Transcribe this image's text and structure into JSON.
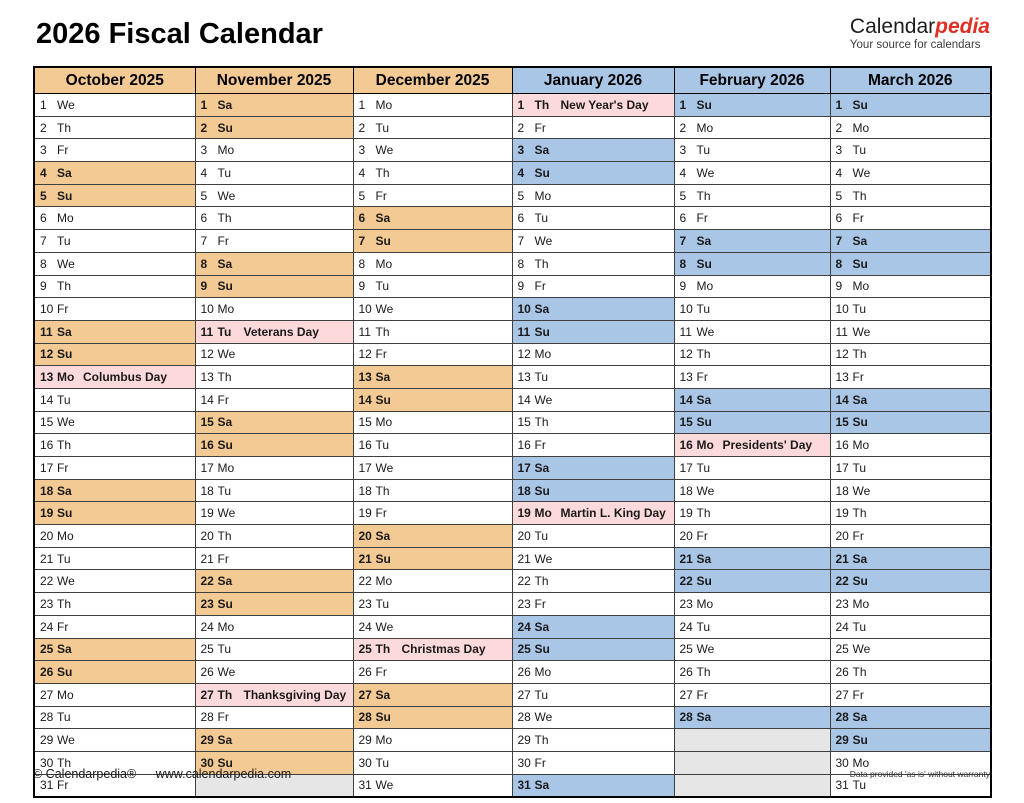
{
  "title": "2026 Fiscal Calendar",
  "logo": {
    "wordmark_black": "Calendar",
    "wordmark_red": "pedia",
    "tagline": "Your source for calendars"
  },
  "colors": {
    "weekend_2025_tan": "#f3c994",
    "weekend_2026_blue": "#aac6e7",
    "holiday_bg_pink": "#fcd9db",
    "holiday_text_red": "#e60000",
    "logo_red": "#e02f24",
    "empty_cell_gray": "#e6e6e6"
  },
  "table": {
    "months": [
      {
        "header": "October 2025",
        "theme": "tan",
        "days": [
          {
            "d": 1,
            "w": "We"
          },
          {
            "d": 2,
            "w": "Th"
          },
          {
            "d": 3,
            "w": "Fr"
          },
          {
            "d": 4,
            "w": "Sa"
          },
          {
            "d": 5,
            "w": "Su"
          },
          {
            "d": 6,
            "w": "Mo"
          },
          {
            "d": 7,
            "w": "Tu"
          },
          {
            "d": 8,
            "w": "We"
          },
          {
            "d": 9,
            "w": "Th"
          },
          {
            "d": 10,
            "w": "Fr"
          },
          {
            "d": 11,
            "w": "Sa"
          },
          {
            "d": 12,
            "w": "Su"
          },
          {
            "d": 13,
            "w": "Mo",
            "h": "Columbus Day"
          },
          {
            "d": 14,
            "w": "Tu"
          },
          {
            "d": 15,
            "w": "We"
          },
          {
            "d": 16,
            "w": "Th"
          },
          {
            "d": 17,
            "w": "Fr"
          },
          {
            "d": 18,
            "w": "Sa"
          },
          {
            "d": 19,
            "w": "Su"
          },
          {
            "d": 20,
            "w": "Mo"
          },
          {
            "d": 21,
            "w": "Tu"
          },
          {
            "d": 22,
            "w": "We"
          },
          {
            "d": 23,
            "w": "Th"
          },
          {
            "d": 24,
            "w": "Fr"
          },
          {
            "d": 25,
            "w": "Sa"
          },
          {
            "d": 26,
            "w": "Su"
          },
          {
            "d": 27,
            "w": "Mo"
          },
          {
            "d": 28,
            "w": "Tu"
          },
          {
            "d": 29,
            "w": "We"
          },
          {
            "d": 30,
            "w": "Th"
          },
          {
            "d": 31,
            "w": "Fr"
          }
        ]
      },
      {
        "header": "November 2025",
        "theme": "tan",
        "days": [
          {
            "d": 1,
            "w": "Sa"
          },
          {
            "d": 2,
            "w": "Su"
          },
          {
            "d": 3,
            "w": "Mo"
          },
          {
            "d": 4,
            "w": "Tu"
          },
          {
            "d": 5,
            "w": "We"
          },
          {
            "d": 6,
            "w": "Th"
          },
          {
            "d": 7,
            "w": "Fr"
          },
          {
            "d": 8,
            "w": "Sa"
          },
          {
            "d": 9,
            "w": "Su"
          },
          {
            "d": 10,
            "w": "Mo"
          },
          {
            "d": 11,
            "w": "Tu",
            "h": "Veterans Day"
          },
          {
            "d": 12,
            "w": "We"
          },
          {
            "d": 13,
            "w": "Th"
          },
          {
            "d": 14,
            "w": "Fr"
          },
          {
            "d": 15,
            "w": "Sa"
          },
          {
            "d": 16,
            "w": "Su"
          },
          {
            "d": 17,
            "w": "Mo"
          },
          {
            "d": 18,
            "w": "Tu"
          },
          {
            "d": 19,
            "w": "We"
          },
          {
            "d": 20,
            "w": "Th"
          },
          {
            "d": 21,
            "w": "Fr"
          },
          {
            "d": 22,
            "w": "Sa"
          },
          {
            "d": 23,
            "w": "Su"
          },
          {
            "d": 24,
            "w": "Mo"
          },
          {
            "d": 25,
            "w": "Tu"
          },
          {
            "d": 26,
            "w": "We"
          },
          {
            "d": 27,
            "w": "Th",
            "h": "Thanksgiving Day"
          },
          {
            "d": 28,
            "w": "Fr"
          },
          {
            "d": 29,
            "w": "Sa"
          },
          {
            "d": 30,
            "w": "Su"
          }
        ]
      },
      {
        "header": "December 2025",
        "theme": "tan",
        "days": [
          {
            "d": 1,
            "w": "Mo"
          },
          {
            "d": 2,
            "w": "Tu"
          },
          {
            "d": 3,
            "w": "We"
          },
          {
            "d": 4,
            "w": "Th"
          },
          {
            "d": 5,
            "w": "Fr"
          },
          {
            "d": 6,
            "w": "Sa"
          },
          {
            "d": 7,
            "w": "Su"
          },
          {
            "d": 8,
            "w": "Mo"
          },
          {
            "d": 9,
            "w": "Tu"
          },
          {
            "d": 10,
            "w": "We"
          },
          {
            "d": 11,
            "w": "Th"
          },
          {
            "d": 12,
            "w": "Fr"
          },
          {
            "d": 13,
            "w": "Sa"
          },
          {
            "d": 14,
            "w": "Su"
          },
          {
            "d": 15,
            "w": "Mo"
          },
          {
            "d": 16,
            "w": "Tu"
          },
          {
            "d": 17,
            "w": "We"
          },
          {
            "d": 18,
            "w": "Th"
          },
          {
            "d": 19,
            "w": "Fr"
          },
          {
            "d": 20,
            "w": "Sa"
          },
          {
            "d": 21,
            "w": "Su"
          },
          {
            "d": 22,
            "w": "Mo"
          },
          {
            "d": 23,
            "w": "Tu"
          },
          {
            "d": 24,
            "w": "We"
          },
          {
            "d": 25,
            "w": "Th",
            "h": "Christmas Day"
          },
          {
            "d": 26,
            "w": "Fr"
          },
          {
            "d": 27,
            "w": "Sa"
          },
          {
            "d": 28,
            "w": "Su"
          },
          {
            "d": 29,
            "w": "Mo"
          },
          {
            "d": 30,
            "w": "Tu"
          },
          {
            "d": 31,
            "w": "We"
          }
        ]
      },
      {
        "header": "January 2026",
        "theme": "blue",
        "days": [
          {
            "d": 1,
            "w": "Th",
            "h": "New Year's Day"
          },
          {
            "d": 2,
            "w": "Fr"
          },
          {
            "d": 3,
            "w": "Sa"
          },
          {
            "d": 4,
            "w": "Su"
          },
          {
            "d": 5,
            "w": "Mo"
          },
          {
            "d": 6,
            "w": "Tu"
          },
          {
            "d": 7,
            "w": "We"
          },
          {
            "d": 8,
            "w": "Th"
          },
          {
            "d": 9,
            "w": "Fr"
          },
          {
            "d": 10,
            "w": "Sa"
          },
          {
            "d": 11,
            "w": "Su"
          },
          {
            "d": 12,
            "w": "Mo"
          },
          {
            "d": 13,
            "w": "Tu"
          },
          {
            "d": 14,
            "w": "We"
          },
          {
            "d": 15,
            "w": "Th"
          },
          {
            "d": 16,
            "w": "Fr"
          },
          {
            "d": 17,
            "w": "Sa"
          },
          {
            "d": 18,
            "w": "Su"
          },
          {
            "d": 19,
            "w": "Mo",
            "h": "Martin L. King Day"
          },
          {
            "d": 20,
            "w": "Tu"
          },
          {
            "d": 21,
            "w": "We"
          },
          {
            "d": 22,
            "w": "Th"
          },
          {
            "d": 23,
            "w": "Fr"
          },
          {
            "d": 24,
            "w": "Sa"
          },
          {
            "d": 25,
            "w": "Su"
          },
          {
            "d": 26,
            "w": "Mo"
          },
          {
            "d": 27,
            "w": "Tu"
          },
          {
            "d": 28,
            "w": "We"
          },
          {
            "d": 29,
            "w": "Th"
          },
          {
            "d": 30,
            "w": "Fr"
          },
          {
            "d": 31,
            "w": "Sa"
          }
        ]
      },
      {
        "header": "February 2026",
        "theme": "blue",
        "days": [
          {
            "d": 1,
            "w": "Su"
          },
          {
            "d": 2,
            "w": "Mo"
          },
          {
            "d": 3,
            "w": "Tu"
          },
          {
            "d": 4,
            "w": "We"
          },
          {
            "d": 5,
            "w": "Th"
          },
          {
            "d": 6,
            "w": "Fr"
          },
          {
            "d": 7,
            "w": "Sa"
          },
          {
            "d": 8,
            "w": "Su"
          },
          {
            "d": 9,
            "w": "Mo"
          },
          {
            "d": 10,
            "w": "Tu"
          },
          {
            "d": 11,
            "w": "We"
          },
          {
            "d": 12,
            "w": "Th"
          },
          {
            "d": 13,
            "w": "Fr"
          },
          {
            "d": 14,
            "w": "Sa"
          },
          {
            "d": 15,
            "w": "Su"
          },
          {
            "d": 16,
            "w": "Mo",
            "h": "Presidents' Day"
          },
          {
            "d": 17,
            "w": "Tu"
          },
          {
            "d": 18,
            "w": "We"
          },
          {
            "d": 19,
            "w": "Th"
          },
          {
            "d": 20,
            "w": "Fr"
          },
          {
            "d": 21,
            "w": "Sa"
          },
          {
            "d": 22,
            "w": "Su"
          },
          {
            "d": 23,
            "w": "Mo"
          },
          {
            "d": 24,
            "w": "Tu"
          },
          {
            "d": 25,
            "w": "We"
          },
          {
            "d": 26,
            "w": "Th"
          },
          {
            "d": 27,
            "w": "Fr"
          },
          {
            "d": 28,
            "w": "Sa"
          }
        ]
      },
      {
        "header": "March 2026",
        "theme": "blue",
        "days": [
          {
            "d": 1,
            "w": "Su"
          },
          {
            "d": 2,
            "w": "Mo"
          },
          {
            "d": 3,
            "w": "Tu"
          },
          {
            "d": 4,
            "w": "We"
          },
          {
            "d": 5,
            "w": "Th"
          },
          {
            "d": 6,
            "w": "Fr"
          },
          {
            "d": 7,
            "w": "Sa"
          },
          {
            "d": 8,
            "w": "Su"
          },
          {
            "d": 9,
            "w": "Mo"
          },
          {
            "d": 10,
            "w": "Tu"
          },
          {
            "d": 11,
            "w": "We"
          },
          {
            "d": 12,
            "w": "Th"
          },
          {
            "d": 13,
            "w": "Fr"
          },
          {
            "d": 14,
            "w": "Sa"
          },
          {
            "d": 15,
            "w": "Su"
          },
          {
            "d": 16,
            "w": "Mo"
          },
          {
            "d": 17,
            "w": "Tu"
          },
          {
            "d": 18,
            "w": "We"
          },
          {
            "d": 19,
            "w": "Th"
          },
          {
            "d": 20,
            "w": "Fr"
          },
          {
            "d": 21,
            "w": "Sa"
          },
          {
            "d": 22,
            "w": "Su"
          },
          {
            "d": 23,
            "w": "Mo"
          },
          {
            "d": 24,
            "w": "Tu"
          },
          {
            "d": 25,
            "w": "We"
          },
          {
            "d": 26,
            "w": "Th"
          },
          {
            "d": 27,
            "w": "Fr"
          },
          {
            "d": 28,
            "w": "Sa"
          },
          {
            "d": 29,
            "w": "Su"
          },
          {
            "d": 30,
            "w": "Mo"
          },
          {
            "d": 31,
            "w": "Tu"
          }
        ]
      }
    ]
  },
  "footer": {
    "copyright": "© Calendarpedia®",
    "website": "www.calendarpedia.com",
    "disclaimer": "Data provided 'as is' without warranty"
  }
}
